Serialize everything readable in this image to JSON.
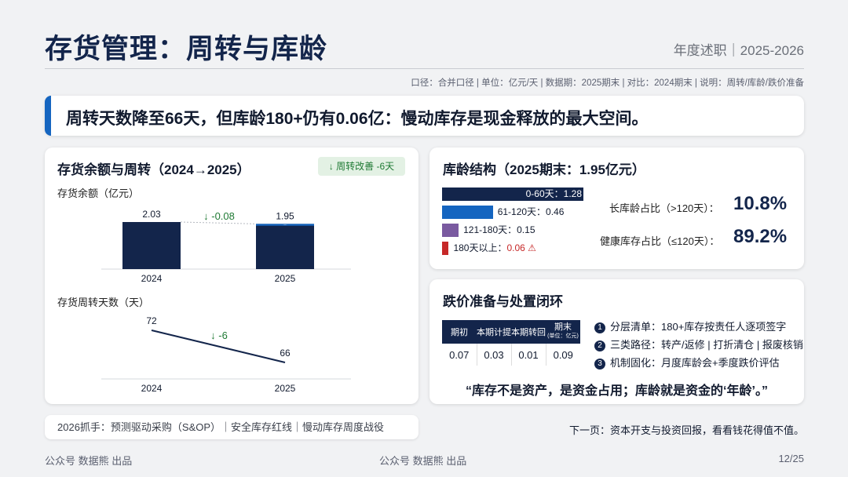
{
  "header": {
    "title": "存货管理：周转与库龄",
    "subtitle": "年度述职｜2025-2026",
    "meta": "口径：合并口径 | 单位：亿元/天 | 数据期：2025期末 | 对比：2024期末 | 说明：周转/库龄/跌价准备"
  },
  "headline": "周转天数降至66天，但库龄180+仍有0.06亿：慢动库存是现金释放的最大空间。",
  "left_card": {
    "title": "存货余额与周转（2024→2025）",
    "badge": "周转改善 -6天",
    "balance_label": "存货余额（亿元）",
    "turnover_label": "存货周转天数（天）"
  },
  "chart_data": [
    {
      "type": "bar",
      "categories": [
        "2024",
        "2025"
      ],
      "values": [
        2.03,
        1.95
      ],
      "ylabel": "存货余额（亿元）",
      "annotation": "-0.08"
    },
    {
      "type": "line",
      "categories": [
        "2024",
        "2025"
      ],
      "values": [
        72,
        66
      ],
      "ylabel": "存货周转天数（天）",
      "annotation": "-6"
    }
  ],
  "aging": {
    "title": "库龄结构（2025期末：1.95亿元）",
    "buckets": [
      {
        "label": "0-60天：1.28",
        "value": 1.28,
        "color": "#13254b"
      },
      {
        "label": "61-120天：0.46",
        "value": 0.46,
        "color": "#1565c0"
      },
      {
        "label": "121-180天：0.15",
        "value": 0.15,
        "color": "#7a5aa0"
      },
      {
        "label": "180天以上：",
        "value": 0.06,
        "value_text": "0.06",
        "color": "#c62828"
      }
    ],
    "long_label": "长库龄占比（>120天）：",
    "long_value": "10.8%",
    "healthy_label": "健康库存占比（≤120天）：",
    "healthy_value": "89.2%"
  },
  "provision": {
    "title": "跌价准备与处置闭环",
    "headers": [
      "期初",
      "本期计提",
      "本期转回",
      "期末"
    ],
    "end_unit": "(单位：亿元)",
    "values": [
      "0.07",
      "0.03",
      "0.01",
      "0.09"
    ],
    "steps": [
      {
        "num": "1",
        "text": "分层清单：180+库存按责任人逐项签字"
      },
      {
        "num": "2",
        "text": "三类路径：转产/返修 | 打折清仓 | 报废核销"
      },
      {
        "num": "3",
        "text": "机制固化：月度库龄会+季度跌价评估"
      }
    ],
    "quote": "“库存不是资产，是资金占用；库龄就是资金的‘年龄’。”"
  },
  "bottom_note": "2026抓手：预测驱动采购（S&OP）｜安全库存红线｜慢动库存周度战役",
  "next_page": "下一页：资本开支与投资回报，看看钱花得值不值。",
  "footer": {
    "left": "公众号 数据熊 出品",
    "center": "公众号 数据熊 出品",
    "page": "12/25"
  }
}
